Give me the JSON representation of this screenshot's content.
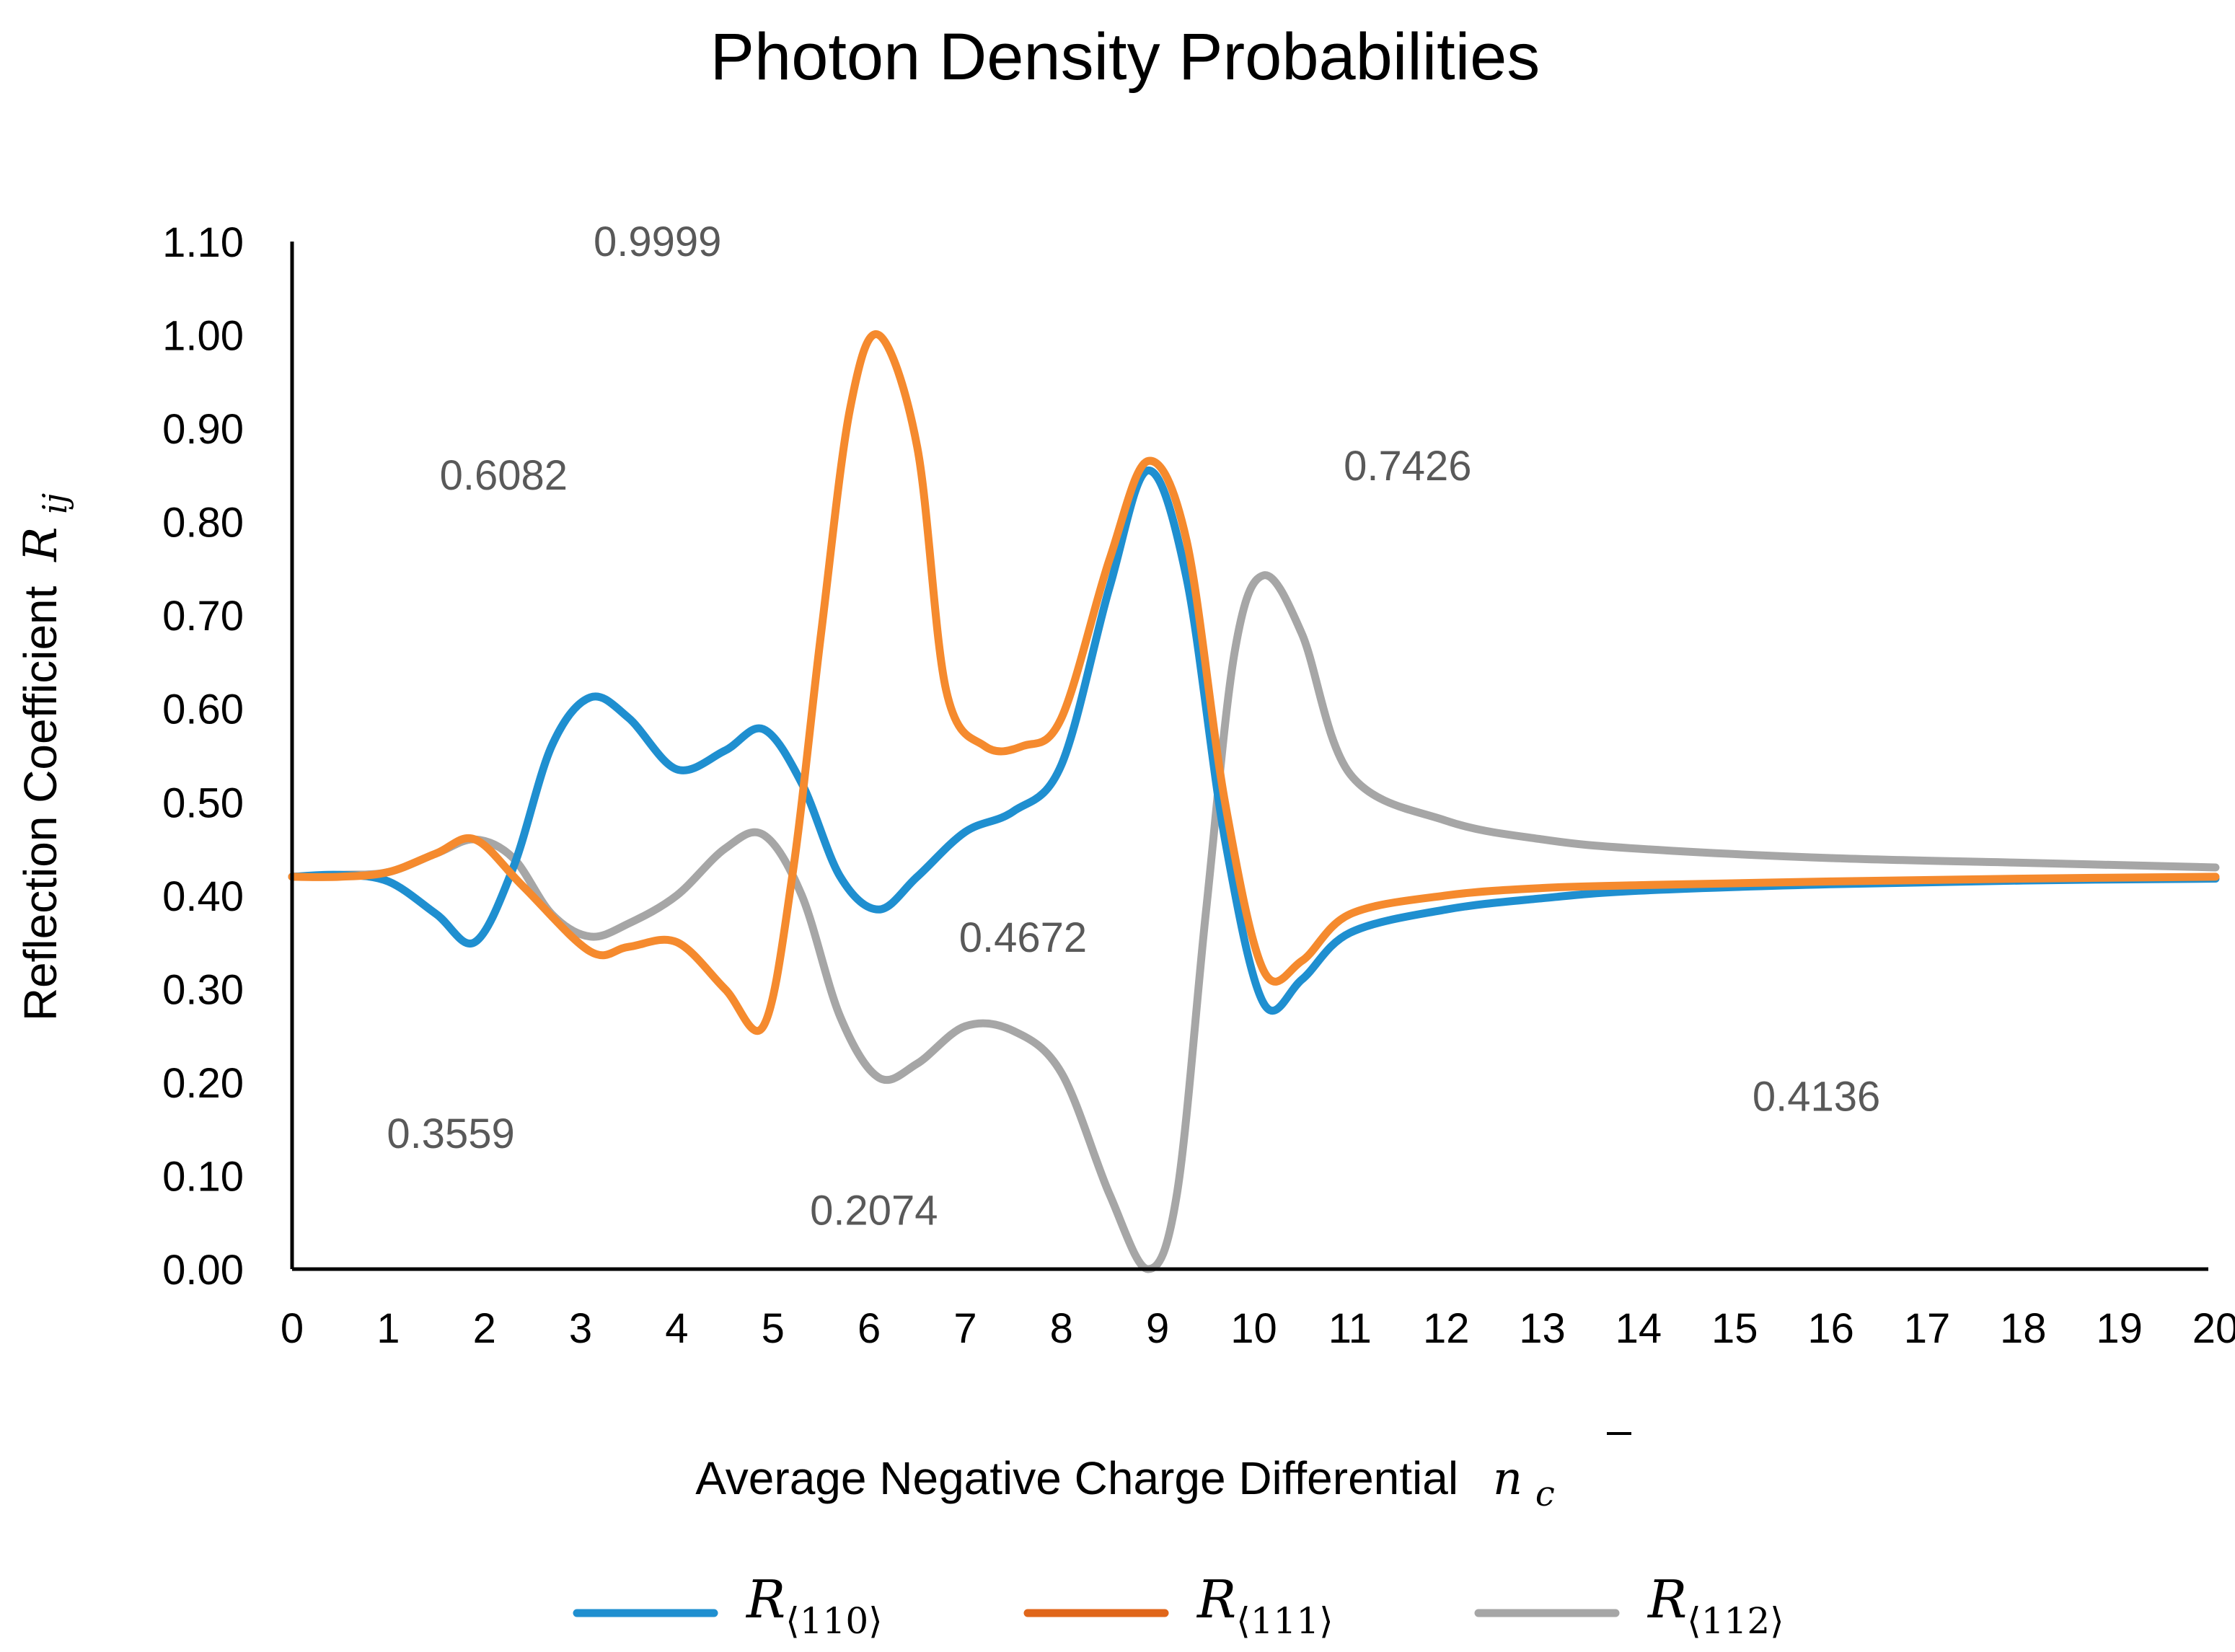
{
  "chart_data": {
    "type": "line",
    "title": "Photon Density Probabilities",
    "xlabel": "Average Negative Charge Differential",
    "xlabel_symbol": "n",
    "xlabel_symbol_sub": "c",
    "ylabel": "Reflection Coefficient",
    "ylabel_symbol": "R",
    "ylabel_symbol_sub": "ij",
    "xlim": [
      0,
      20
    ],
    "ylim": [
      0,
      1.1
    ],
    "x_ticks": [
      "0",
      "1",
      "2",
      "3",
      "4",
      "5",
      "6",
      "7",
      "8",
      "9",
      "10",
      "11",
      "12",
      "13",
      "14",
      "15",
      "16",
      "17",
      "18",
      "19",
      "20"
    ],
    "y_ticks": [
      "0.00",
      "0.10",
      "0.20",
      "0.30",
      "0.40",
      "0.50",
      "0.60",
      "0.70",
      "0.80",
      "0.90",
      "1.00",
      "1.10"
    ],
    "grid": false,
    "legend_position": "bottom",
    "series": [
      {
        "name": "R⟨110⟩",
        "symbol": "R",
        "subscript": "⟨110⟩",
        "color": "#1f8fd0",
        "x": [
          0,
          0.5,
          1,
          1.5,
          1.9,
          2.3,
          2.7,
          3.1,
          3.5,
          4,
          4.5,
          4.9,
          5.3,
          5.7,
          6.1,
          6.5,
          7,
          7.5,
          8,
          8.5,
          8.9,
          9.3,
          9.7,
          10.1,
          10.5,
          11,
          12,
          13,
          14,
          16,
          18,
          20
        ],
        "y": [
          0.42,
          0.422,
          0.415,
          0.38,
          0.35,
          0.43,
          0.56,
          0.612,
          0.59,
          0.535,
          0.555,
          0.578,
          0.52,
          0.42,
          0.385,
          0.42,
          0.468,
          0.49,
          0.54,
          0.73,
          0.855,
          0.74,
          0.46,
          0.285,
          0.31,
          0.36,
          0.385,
          0.397,
          0.405,
          0.412,
          0.416,
          0.418
        ]
      },
      {
        "name": "R⟨111⟩",
        "symbol": "R",
        "subscript": "⟨111⟩",
        "color": "#f58a2e",
        "x": [
          0,
          0.5,
          1,
          1.5,
          1.9,
          2.4,
          3.1,
          3.5,
          4,
          4.5,
          4.9,
          5.2,
          5.5,
          5.8,
          6.1,
          6.5,
          6.8,
          7.2,
          7.6,
          8,
          8.5,
          8.9,
          9.3,
          9.7,
          10.1,
          10.5,
          11,
          12,
          13,
          14,
          16,
          18,
          20
        ],
        "y": [
          0.42,
          0.42,
          0.425,
          0.445,
          0.46,
          0.41,
          0.34,
          0.345,
          0.35,
          0.3,
          0.26,
          0.42,
          0.68,
          0.92,
          1.0,
          0.88,
          0.62,
          0.56,
          0.56,
          0.59,
          0.76,
          0.865,
          0.78,
          0.5,
          0.32,
          0.33,
          0.38,
          0.4,
          0.408,
          0.411,
          0.415,
          0.418,
          0.42
        ]
      },
      {
        "name": "R⟨112⟩",
        "symbol": "R",
        "subscript": "⟨112⟩",
        "color": "#a6a6a6",
        "x": [
          0,
          0.5,
          1,
          1.5,
          1.9,
          2.3,
          2.7,
          3.1,
          3.5,
          4,
          4.5,
          4.9,
          5.3,
          5.7,
          6.1,
          6.5,
          7,
          7.5,
          8,
          8.5,
          8.9,
          9.2,
          9.5,
          9.8,
          10.1,
          10.5,
          11,
          12,
          13,
          14,
          16,
          18,
          20
        ],
        "y": [
          0.42,
          0.422,
          0.425,
          0.445,
          0.46,
          0.44,
          0.38,
          0.356,
          0.37,
          0.4,
          0.45,
          0.465,
          0.4,
          0.27,
          0.205,
          0.22,
          0.26,
          0.255,
          0.21,
          0.08,
          0.0,
          0.08,
          0.38,
          0.66,
          0.7426,
          0.68,
          0.53,
          0.48,
          0.46,
          0.45,
          0.44,
          0.435,
          0.43
        ]
      }
    ],
    "annotations": [
      {
        "text": "0.9999",
        "x": 3.8,
        "y": 1.1
      },
      {
        "text": "0.6082",
        "x": 2.2,
        "y": 0.85
      },
      {
        "text": "0.7426",
        "x": 11.6,
        "y": 0.86
      },
      {
        "text": "0.4672",
        "x": 7.6,
        "y": 0.355
      },
      {
        "text": "0.3559",
        "x": 1.65,
        "y": 0.145
      },
      {
        "text": "0.2074",
        "x": 6.05,
        "y": 0.063
      },
      {
        "text": "0.4136",
        "x": 15.85,
        "y": 0.185
      }
    ]
  }
}
